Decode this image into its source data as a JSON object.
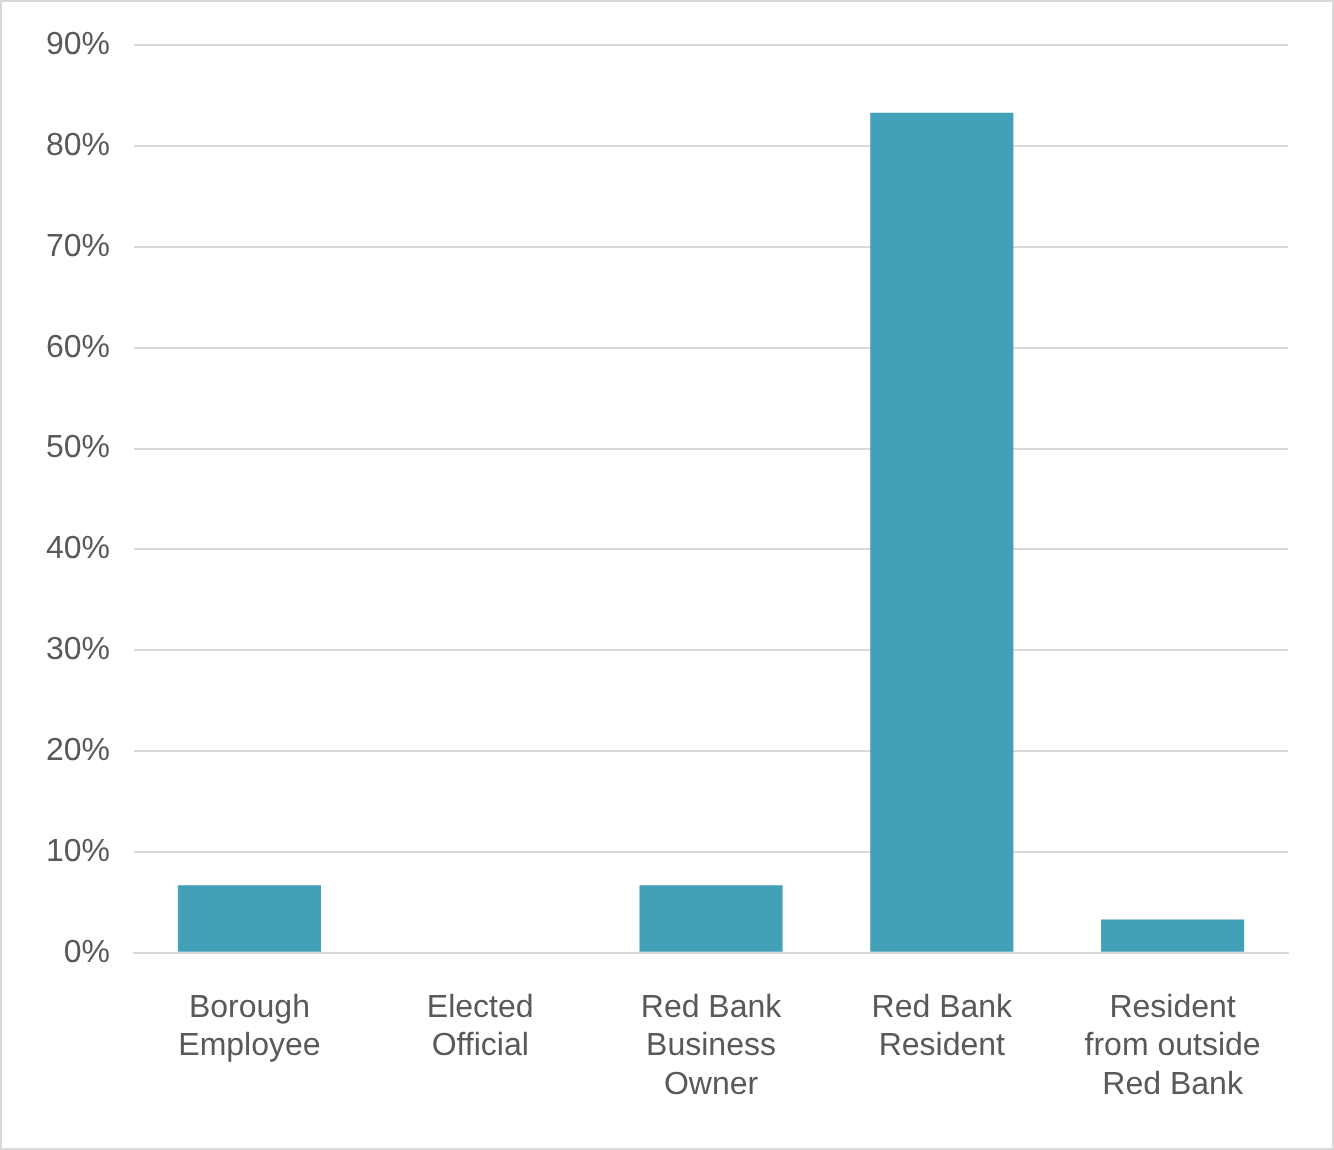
{
  "chart_data": {
    "type": "bar",
    "categories": [
      "Borough Employee",
      "Elected Official",
      "Red Bank Business Owner",
      "Red Bank Resident",
      "Resident from outside Red Bank"
    ],
    "values": [
      6.7,
      0,
      6.7,
      83.3,
      3.3
    ],
    "color": "#43a0b9",
    "ylim": [
      0,
      90
    ],
    "yticks": [
      {
        "value": 0,
        "label": "0%"
      },
      {
        "value": 10,
        "label": "10%"
      },
      {
        "value": 20,
        "label": "20%"
      },
      {
        "value": 30,
        "label": "30%"
      },
      {
        "value": 40,
        "label": "40%"
      },
      {
        "value": 50,
        "label": "50%"
      },
      {
        "value": 60,
        "label": "60%"
      },
      {
        "value": 70,
        "label": "70%"
      },
      {
        "value": 80,
        "label": "80%"
      },
      {
        "value": 90,
        "label": "90%"
      }
    ],
    "grid": "y"
  }
}
